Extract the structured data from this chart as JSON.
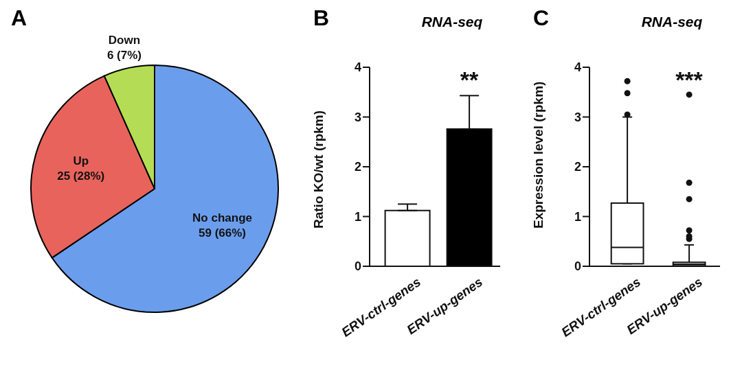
{
  "chart_data": [
    {
      "type": "pie",
      "annotations": [
        "A"
      ],
      "categories": [
        "No change",
        "Up",
        "Down"
      ],
      "values": [
        59,
        25,
        6
      ],
      "value_labels": [
        "59 (66%)",
        "25 (28%)",
        "6 (7%)"
      ],
      "colors": [
        "#6b9ded",
        "#e8635c",
        "#b5dc55"
      ]
    },
    {
      "type": "bar",
      "title": "RNA-seq",
      "ylabel": "Ratio KO/wt (rpkm)",
      "annotations": [
        "B",
        "**"
      ],
      "categories": [
        "ERV-ctrl-genes",
        "ERV-up-genes"
      ],
      "values": [
        1.12,
        2.76
      ],
      "colors": [
        "#ffffff",
        "#000000"
      ],
      "errors": [
        [
          1.12,
          1.25
        ],
        [
          2.76,
          3.43
        ]
      ],
      "ylim": [
        0,
        4
      ],
      "yticks": [
        0,
        1,
        2,
        3,
        4
      ]
    },
    {
      "type": "box",
      "title": "RNA-seq",
      "ylabel": "Expression level (rpkm)",
      "annotations": [
        "C",
        "***"
      ],
      "categories": [
        "ERV-ctrl-genes",
        "ERV-up-genes"
      ],
      "colors": [
        "#ffffff",
        "#ffffff"
      ],
      "boxes": [
        {
          "low": 0.05,
          "q1": 0.05,
          "median": 0.38,
          "q3": 1.27,
          "high": 3.0,
          "outliers": [
            3.05,
            3.48,
            3.72
          ]
        },
        {
          "low": 0.0,
          "q1": 0.01,
          "median": 0.04,
          "q3": 0.08,
          "high": 0.43,
          "outliers": [
            0.55,
            0.6,
            0.72,
            1.35,
            1.68,
            3.45
          ]
        }
      ],
      "ylim": [
        0,
        4
      ],
      "yticks": [
        0,
        1,
        2,
        3,
        4
      ]
    }
  ]
}
